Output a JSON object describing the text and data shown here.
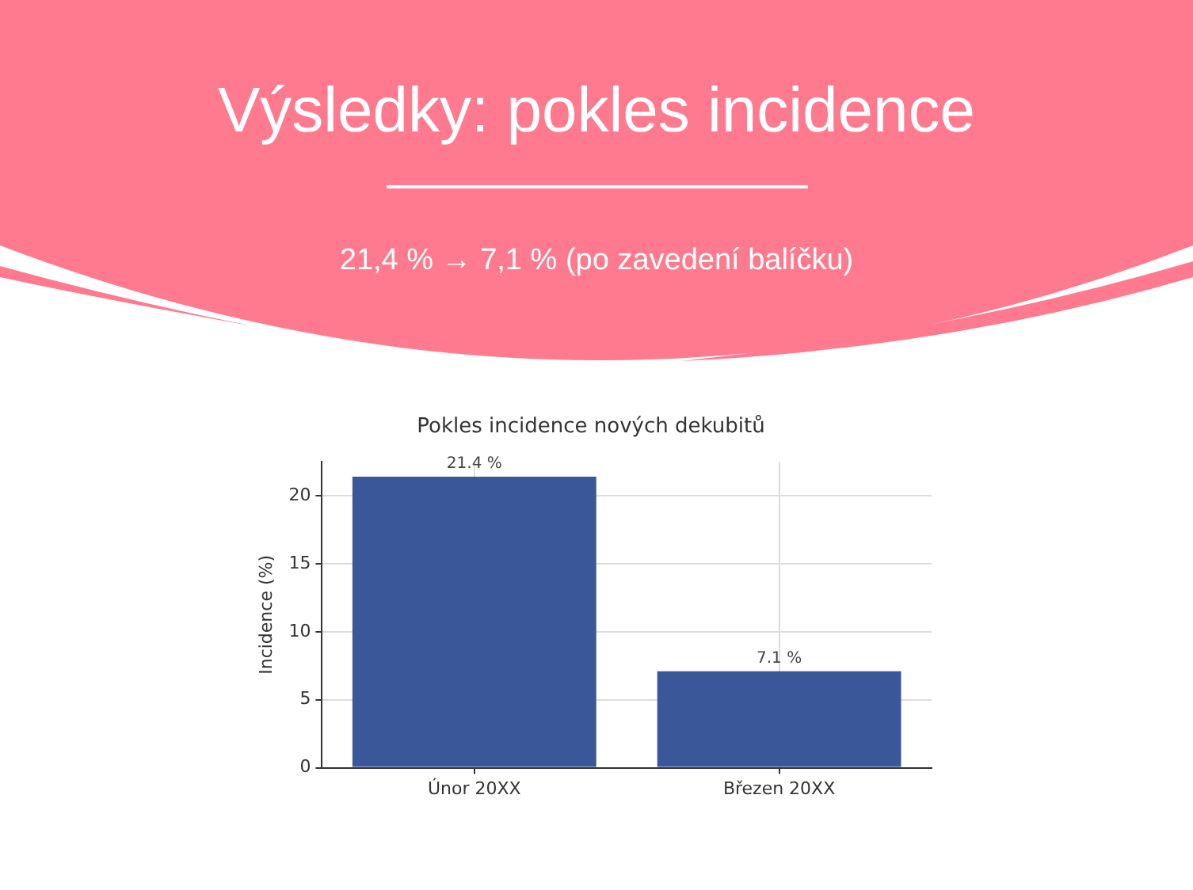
{
  "chart_data": {
    "type": "bar",
    "title": "Výsledky: pokles incidence",
    "subtitle": "21,4 % → 7,1 % (po zavedení balíčku)",
    "annotations": [
      "Pokles incidence nových dekubitů"
    ],
    "ylabel": "Incidence (%)",
    "categories": [
      "Únor 20XX",
      "Březen 20XX"
    ],
    "values": [
      21.4,
      7.1
    ],
    "value_labels": [
      "21.4 %",
      "7.1 %"
    ],
    "color": "#3a5899",
    "ylim": [
      0,
      22.5
    ],
    "yticks": [
      0,
      5,
      10,
      15,
      20
    ],
    "grid": true
  }
}
